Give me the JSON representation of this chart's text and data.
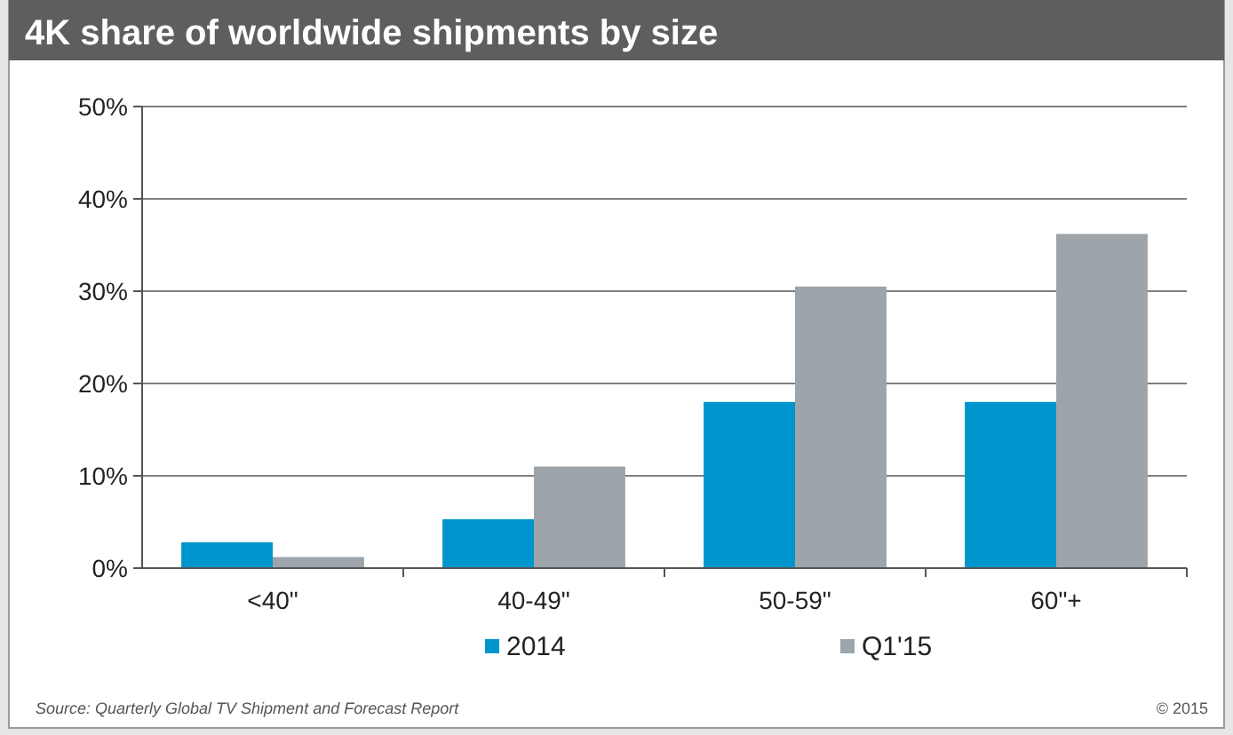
{
  "chart_data": {
    "type": "bar",
    "title": "4K share of worldwide shipments by size",
    "categories": [
      "<40\"",
      "40-49\"",
      "50-59\"",
      "60\"+"
    ],
    "series": [
      {
        "name": "2014",
        "color": "#0095cc",
        "values": [
          2.8,
          5.3,
          18,
          18
        ]
      },
      {
        "name": "Q1'15",
        "color": "#9da5ab",
        "values": [
          1.2,
          11,
          30.5,
          36.2
        ]
      }
    ],
    "ylim": [
      0,
      50
    ],
    "yticks": [
      {
        "value": 0,
        "label": "0%"
      },
      {
        "value": 10,
        "label": "10%"
      },
      {
        "value": 20,
        "label": "20%"
      },
      {
        "value": 30,
        "label": "30%"
      },
      {
        "value": 40,
        "label": "40%"
      },
      {
        "value": 50,
        "label": "50%"
      }
    ],
    "grid": "y",
    "legend": "bottom",
    "annotations": [
      "Source: Quarterly Global TV Shipment and Forecast Report",
      "© 2015"
    ]
  }
}
